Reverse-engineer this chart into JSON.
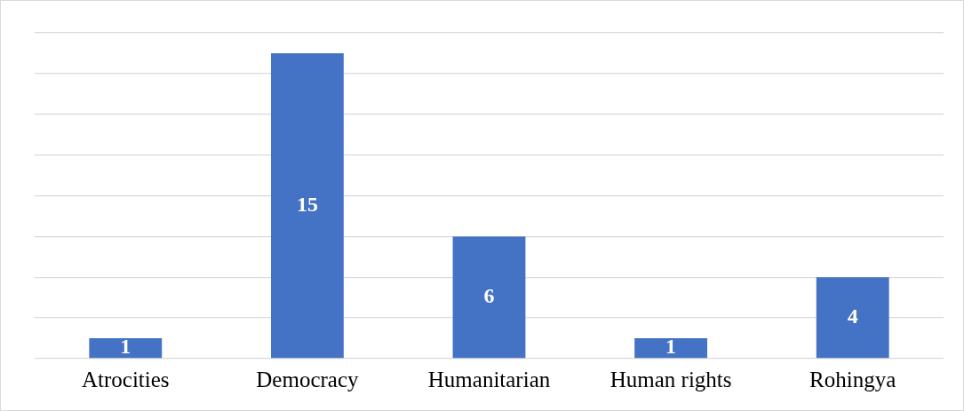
{
  "chart_data": {
    "type": "bar",
    "categories": [
      "Atrocities",
      "Democracy",
      "Humanitarian",
      "Human rights",
      "Rohingya"
    ],
    "values": [
      1,
      15,
      6,
      1,
      4
    ],
    "color": "#4472c4",
    "ylim": [
      0,
      16
    ],
    "yticks": [
      {
        "value": 0,
        "label": null
      },
      {
        "value": 2,
        "label": null
      },
      {
        "value": 4,
        "label": null
      },
      {
        "value": 6,
        "label": null
      },
      {
        "value": 8,
        "label": null
      },
      {
        "value": 10,
        "label": null
      },
      {
        "value": 12,
        "label": null
      },
      {
        "value": 14,
        "label": null
      },
      {
        "value": 16,
        "label": null
      }
    ],
    "grid": "y",
    "tick_labels": "x",
    "data_labels": true
  }
}
